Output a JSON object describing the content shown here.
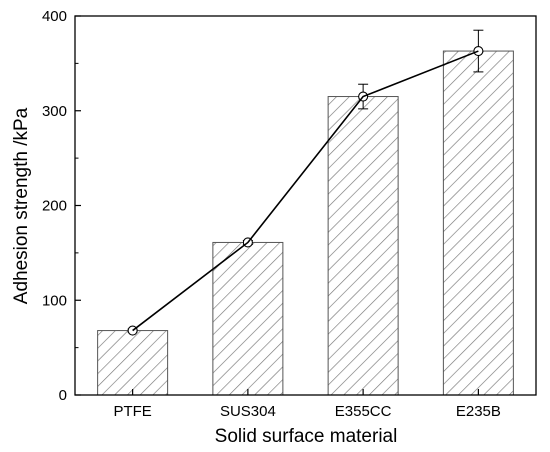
{
  "chart_data": {
    "type": "bar",
    "title": "",
    "xlabel": "Solid surface material",
    "ylabel": "Adhesion strength /kPa",
    "categories": [
      "PTFE",
      "SUS304",
      "E355CC",
      "E235B"
    ],
    "values": [
      68,
      161,
      315,
      363
    ],
    "errors": [
      1.5,
      2,
      13,
      22
    ],
    "overlay_line": true,
    "ylim": [
      0,
      400
    ],
    "yticks": [
      0,
      100,
      200,
      300,
      400
    ],
    "grid": false,
    "bar_fill": "hatched",
    "colors": {
      "bar_edge": "#555555",
      "hatch": "#777777",
      "line": "#000000",
      "axis": "#000000"
    }
  }
}
